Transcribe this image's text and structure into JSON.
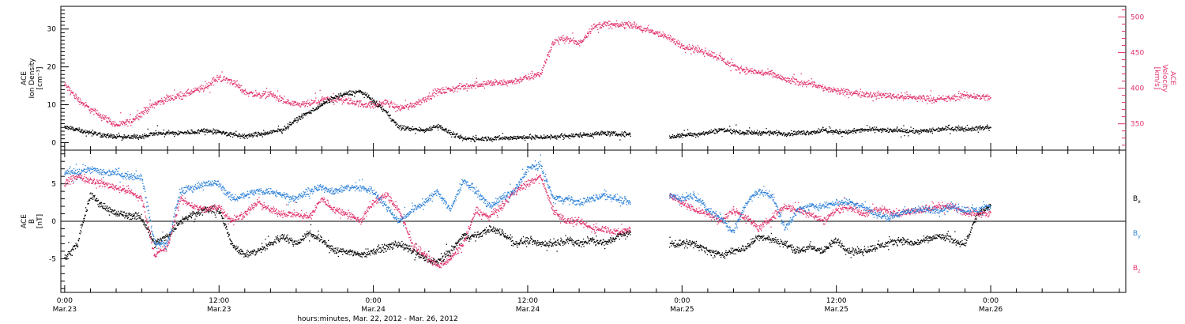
{
  "chart_data": [
    {
      "type": "scatter",
      "panel": "top",
      "ylabel_lines": [
        "ACE",
        "Ion Density",
        "[cm⁻³]"
      ],
      "ylim": [
        -2,
        36
      ],
      "yticks": [
        0,
        10,
        20,
        30
      ],
      "y2label_lines": [
        "ACE",
        "Velocity",
        "[km/s]"
      ],
      "y2lim": [
        313,
        515
      ],
      "y2ticks": [
        350,
        400,
        450,
        500
      ],
      "series": [
        {
          "key": "density",
          "axis": "left",
          "color": "#000000",
          "x": [
            0,
            1,
            2,
            3,
            4,
            5,
            6,
            7,
            8,
            9,
            10,
            11,
            12,
            13,
            14,
            15,
            16,
            17,
            18,
            19,
            20,
            21,
            22,
            23,
            24,
            25,
            26,
            27,
            28,
            29,
            30,
            31,
            32,
            33,
            34,
            35,
            36,
            37,
            38,
            39,
            40,
            41,
            42,
            43,
            44,
            45,
            46,
            47,
            48,
            49,
            50,
            51,
            52,
            53,
            54,
            55,
            56,
            57,
            58,
            59,
            60,
            61,
            62,
            63,
            64,
            65,
            66,
            67,
            68,
            69,
            70,
            71,
            72
          ],
          "y": [
            4,
            3.5,
            2.6,
            2,
            1.5,
            1.4,
            1.6,
            2.5,
            2.5,
            2.5,
            2.8,
            3.2,
            2.8,
            2.1,
            1.6,
            2.2,
            2.6,
            3.5,
            6,
            8,
            10,
            12,
            13,
            13.5,
            11,
            8,
            4,
            3.6,
            3.2,
            4.5,
            2.5,
            1,
            1,
            1.1,
            1.2,
            1.3,
            1.4,
            1.4,
            1.5,
            1.7,
            2,
            2.2,
            2.5,
            2.2,
            2.2,
            null,
            null,
            1.4,
            2,
            2.2,
            2.6,
            3.4,
            3,
            2.6,
            2.6,
            2.6,
            2.4,
            2.5,
            2.7,
            3.2,
            2.8,
            2.8,
            3.3,
            3.5,
            3.2,
            3.1,
            2.9,
            3.1,
            3.5,
            3.8,
            3.6,
            3.8,
            4
          ]
        },
        {
          "key": "velocity",
          "axis": "right",
          "color": "#e0306a",
          "x": [
            0,
            1,
            2,
            3,
            4,
            5,
            6,
            7,
            8,
            9,
            10,
            11,
            12,
            13,
            14,
            15,
            16,
            17,
            18,
            19,
            20,
            21,
            22,
            23,
            24,
            25,
            26,
            27,
            28,
            29,
            30,
            31,
            32,
            33,
            34,
            35,
            36,
            37,
            38,
            39,
            40,
            41,
            42,
            43,
            44,
            45,
            46,
            47,
            48,
            49,
            50,
            51,
            52,
            53,
            54,
            55,
            56,
            57,
            58,
            59,
            60,
            61,
            62,
            63,
            64,
            65,
            66,
            67,
            68,
            69,
            70,
            71,
            72
          ],
          "y": [
            405,
            385,
            370,
            360,
            348,
            352,
            365,
            378,
            385,
            390,
            395,
            402,
            415,
            410,
            395,
            390,
            392,
            382,
            376,
            378,
            383,
            385,
            382,
            378,
            376,
            380,
            372,
            376,
            385,
            395,
            398,
            402,
            405,
            407,
            407,
            410,
            415,
            420,
            465,
            470,
            462,
            485,
            490,
            488,
            490,
            482,
            478,
            470,
            460,
            455,
            450,
            442,
            430,
            425,
            422,
            420,
            412,
            408,
            408,
            400,
            396,
            393,
            393,
            390,
            390,
            388,
            387,
            386,
            384,
            386,
            390,
            388,
            387
          ]
        }
      ]
    },
    {
      "type": "scatter",
      "panel": "bottom",
      "ylabel_lines": [
        "ACE",
        "B",
        "[nT]"
      ],
      "ylim": [
        -9.5,
        9.5
      ],
      "yticks": [
        -5,
        0,
        5
      ],
      "series": [
        {
          "key": "bx",
          "name": "B",
          "sub": "x",
          "color": "#000000",
          "x": [
            0,
            1,
            2,
            3,
            4,
            5,
            6,
            7,
            8,
            9,
            10,
            11,
            12,
            13,
            14,
            15,
            16,
            17,
            18,
            19,
            20,
            21,
            22,
            23,
            24,
            25,
            26,
            27,
            28,
            29,
            30,
            31,
            32,
            33,
            34,
            35,
            36,
            37,
            38,
            39,
            40,
            41,
            42,
            43,
            44,
            45,
            46,
            47,
            48,
            49,
            50,
            51,
            52,
            53,
            54,
            55,
            56,
            57,
            58,
            59,
            60,
            61,
            62,
            63,
            64,
            65,
            66,
            67,
            68,
            69,
            70,
            71,
            72
          ],
          "y": [
            -5,
            -3,
            3.5,
            2,
            1,
            0.8,
            0.5,
            -3,
            -2,
            0,
            1,
            1.5,
            1.5,
            -3,
            -4.5,
            -4,
            -3,
            -2,
            -3,
            -1.5,
            -2.5,
            -4,
            -4,
            -4.5,
            -4,
            -3.5,
            -3,
            -4,
            -5,
            -5.5,
            -4,
            -2,
            -2,
            -1,
            -1.5,
            -3,
            -2.5,
            -3,
            -3,
            -2.5,
            -3,
            -2.5,
            -3,
            -2,
            -1.5,
            null,
            null,
            -3,
            -3,
            -3,
            -4,
            -4.5,
            -4,
            -3.5,
            -2,
            -2.5,
            -3,
            -4,
            -3.5,
            -4,
            -2.5,
            -4,
            -4,
            -3.5,
            -3,
            -2.5,
            -3,
            -2.5,
            -2,
            -2.5,
            -3,
            1,
            2
          ]
        },
        {
          "key": "by",
          "name": "B",
          "sub": "y",
          "color": "#2a7fd8",
          "x": [
            0,
            1,
            2,
            3,
            4,
            5,
            6,
            7,
            8,
            9,
            10,
            11,
            12,
            13,
            14,
            15,
            16,
            17,
            18,
            19,
            20,
            21,
            22,
            23,
            24,
            25,
            26,
            27,
            28,
            29,
            30,
            31,
            32,
            33,
            34,
            35,
            36,
            37,
            38,
            39,
            40,
            41,
            42,
            43,
            44,
            45,
            46,
            47,
            48,
            49,
            50,
            51,
            52,
            53,
            54,
            55,
            56,
            57,
            58,
            59,
            60,
            61,
            62,
            63,
            64,
            65,
            66,
            67,
            68,
            69,
            70,
            71,
            72
          ],
          "y": [
            6.5,
            6.5,
            7,
            6.5,
            6.5,
            6,
            6,
            -3,
            -3,
            4,
            4.5,
            5,
            5,
            3,
            3.5,
            4,
            4,
            3.5,
            3,
            4,
            4.5,
            4,
            4.5,
            4.5,
            4,
            2,
            0,
            1.5,
            2.5,
            4,
            1.5,
            5.5,
            4,
            2,
            3,
            4,
            7,
            7.5,
            3,
            3,
            2.5,
            3,
            3.5,
            3,
            2.5,
            null,
            null,
            3.5,
            3,
            3.5,
            1.5,
            0.5,
            -1.5,
            2.5,
            4,
            3.5,
            -1,
            1.5,
            2,
            2,
            2.5,
            2.5,
            2,
            1,
            0.5,
            1,
            1.5,
            1.5,
            1.5,
            2,
            1.5,
            1.5,
            2
          ]
        },
        {
          "key": "bz",
          "name": "B",
          "sub": "z",
          "color": "#e0306a",
          "x": [
            0,
            1,
            2,
            3,
            4,
            5,
            6,
            7,
            8,
            9,
            10,
            11,
            12,
            13,
            14,
            15,
            16,
            17,
            18,
            19,
            20,
            21,
            22,
            23,
            24,
            25,
            26,
            27,
            28,
            29,
            30,
            31,
            32,
            33,
            34,
            35,
            36,
            37,
            38,
            39,
            40,
            41,
            42,
            43,
            44,
            45,
            46,
            47,
            48,
            49,
            50,
            51,
            52,
            53,
            54,
            55,
            56,
            57,
            58,
            59,
            60,
            61,
            62,
            63,
            64,
            65,
            66,
            67,
            68,
            69,
            70,
            71,
            72
          ],
          "y": [
            5,
            6,
            5.5,
            5,
            4.5,
            4,
            3,
            -4.5,
            -3.5,
            3,
            2,
            1.5,
            2,
            0,
            1,
            2.5,
            1.5,
            1,
            1,
            0.5,
            3,
            1.5,
            1,
            0,
            2.5,
            3.5,
            1.5,
            -3,
            -4.5,
            -6,
            -5,
            -3,
            1.5,
            0.5,
            2,
            4,
            5,
            6,
            1.5,
            0,
            0,
            -1,
            -1,
            -1.5,
            -1,
            null,
            null,
            3.5,
            2.5,
            1.5,
            1,
            0,
            1.5,
            0.5,
            -1,
            0.5,
            2,
            1.5,
            1,
            0,
            1.5,
            2,
            1,
            1.5,
            1.5,
            1,
            1.5,
            1.5,
            2,
            2,
            1,
            1,
            1
          ]
        }
      ]
    }
  ],
  "x_axis": {
    "range_hours": [
      0,
      72
    ],
    "extent_hours": [
      -0.3,
      82.5
    ],
    "major_hours": [
      0,
      12,
      24,
      36,
      48,
      60,
      72
    ],
    "major_time_labels": [
      "0:00",
      "12:00",
      "0:00",
      "12:00",
      "0:00",
      "12:00",
      "0:00"
    ],
    "major_date_labels": [
      "Mar.23",
      "Mar.23",
      "Mar.24",
      "Mar.24",
      "Mar.25",
      "Mar.25",
      "Mar.26"
    ],
    "title": "hours:minutes, Mar. 22, 2012 - Mar. 26, 2012"
  },
  "colors": {
    "black": "#000000",
    "blue": "#2a7fd8",
    "pink": "#e0306a"
  }
}
